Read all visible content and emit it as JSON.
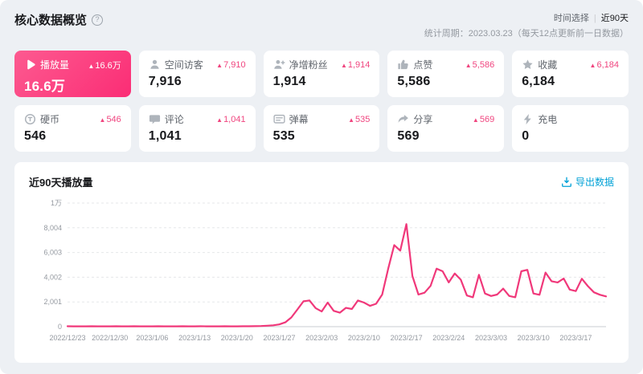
{
  "header": {
    "title": "核心数据概览",
    "help_glyph": "?",
    "time_label": "时间选择",
    "time_divider": "|",
    "time_value": "近90天",
    "period": "统计周期：2023.03.23（每天12点更新前一日数据）"
  },
  "ui": {
    "up_arrow": "▲"
  },
  "stats": [
    {
      "label": "播放量",
      "delta": "16.6万",
      "value": "16.6万"
    },
    {
      "label": "空间访客",
      "delta": "7,910",
      "value": "7,916"
    },
    {
      "label": "净增粉丝",
      "delta": "1,914",
      "value": "1,914"
    },
    {
      "label": "点赞",
      "delta": "5,586",
      "value": "5,586"
    },
    {
      "label": "收藏",
      "delta": "6,184",
      "value": "6,184"
    },
    {
      "label": "硬币",
      "delta": "546",
      "value": "546"
    },
    {
      "label": "评论",
      "delta": "1,041",
      "value": "1,041"
    },
    {
      "label": "弹幕",
      "delta": "535",
      "value": "535"
    },
    {
      "label": "分享",
      "delta": "569",
      "value": "569"
    },
    {
      "label": "充电",
      "delta": "",
      "value": "0"
    }
  ],
  "chart": {
    "title": "近90天播放量",
    "export_label": "导出数据"
  },
  "chart_data": {
    "type": "line",
    "title": "近90天播放量",
    "legend": "none",
    "grid": "horizontal-dashed",
    "line_color": "#f0387a",
    "ylim": [
      0,
      10005
    ],
    "y_ticks": [
      {
        "value": 0,
        "label": "0"
      },
      {
        "value": 2001,
        "label": "2,001"
      },
      {
        "value": 4002,
        "label": "4,002"
      },
      {
        "value": 6003,
        "label": "6,003"
      },
      {
        "value": 8004,
        "label": "8,004"
      },
      {
        "value": 10005,
        "label": "1万"
      }
    ],
    "x_ticks": [
      {
        "index": 0,
        "label": "2022/12/23"
      },
      {
        "index": 7,
        "label": "2022/12/30"
      },
      {
        "index": 14,
        "label": "2023/1/06"
      },
      {
        "index": 21,
        "label": "2023/1/13"
      },
      {
        "index": 28,
        "label": "2023/1/20"
      },
      {
        "index": 35,
        "label": "2023/1/27"
      },
      {
        "index": 42,
        "label": "2023/2/03"
      },
      {
        "index": 49,
        "label": "2023/2/10"
      },
      {
        "index": 56,
        "label": "2023/2/17"
      },
      {
        "index": 63,
        "label": "2023/2/24"
      },
      {
        "index": 70,
        "label": "2023/3/03"
      },
      {
        "index": 77,
        "label": "2023/3/10"
      },
      {
        "index": 84,
        "label": "2023/3/17"
      }
    ],
    "series": [
      {
        "name": "播放量",
        "values": [
          30,
          26,
          24,
          28,
          31,
          27,
          25,
          29,
          33,
          28,
          26,
          30,
          27,
          25,
          28,
          32,
          29,
          26,
          28,
          31,
          27,
          25,
          30,
          28,
          26,
          29,
          32,
          28,
          26,
          30,
          34,
          40,
          55,
          75,
          110,
          180,
          350,
          750,
          1400,
          2050,
          2120,
          1500,
          1230,
          1950,
          1280,
          1130,
          1520,
          1430,
          2120,
          1950,
          1680,
          1850,
          2600,
          4700,
          6600,
          6150,
          8300,
          4100,
          2600,
          2750,
          3300,
          4700,
          4480,
          3580,
          4300,
          3800,
          2520,
          2380,
          4200,
          2680,
          2480,
          2600,
          3080,
          2480,
          2380,
          4480,
          4600,
          2680,
          2580,
          4380,
          3680,
          3580,
          3900,
          3000,
          2880,
          3880,
          3280,
          2780,
          2580,
          2450
        ]
      }
    ]
  }
}
